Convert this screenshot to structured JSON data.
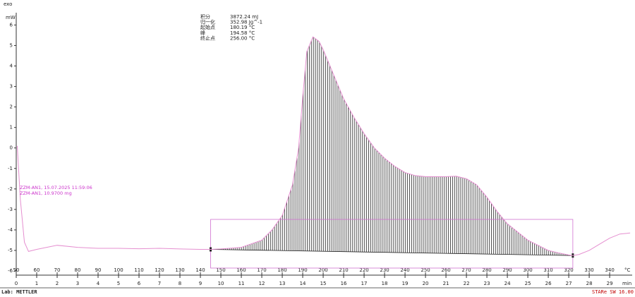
{
  "chart_data": {
    "type": "line",
    "exo_label": "exo",
    "y_label": "mW",
    "x_label": "°C",
    "x2_label": "min",
    "color": "#e58fd0",
    "x": [
      50.5,
      52,
      54,
      56,
      60,
      70,
      80,
      90,
      100,
      110,
      120,
      130,
      140,
      145,
      150,
      160,
      170,
      175,
      180,
      185,
      188,
      190,
      192,
      195,
      198,
      200,
      205,
      210,
      215,
      220,
      225,
      230,
      235,
      240,
      245,
      250,
      255,
      260,
      265,
      270,
      275,
      280,
      285,
      290,
      295,
      300,
      305,
      310,
      315,
      320,
      322,
      325,
      330,
      335,
      340,
      345,
      350
    ],
    "values": [
      0.1,
      -2.5,
      -4.6,
      -5.05,
      -4.95,
      -4.75,
      -4.85,
      -4.9,
      -4.9,
      -4.92,
      -4.9,
      -4.93,
      -4.95,
      -4.95,
      -4.93,
      -4.85,
      -4.5,
      -4.0,
      -3.3,
      -1.8,
      0.0,
      2.5,
      4.7,
      5.42,
      5.2,
      4.8,
      3.6,
      2.4,
      1.5,
      0.7,
      0.0,
      -0.5,
      -0.9,
      -1.2,
      -1.35,
      -1.4,
      -1.4,
      -1.4,
      -1.38,
      -1.5,
      -1.8,
      -2.4,
      -3.1,
      -3.7,
      -4.1,
      -4.5,
      -4.75,
      -5.0,
      -5.12,
      -5.22,
      -5.25,
      -5.2,
      -5.0,
      -4.7,
      -4.4,
      -4.2,
      -4.15
    ],
    "integration": {
      "start": 145,
      "end": 322
    },
    "xlim": [
      50,
      351
    ],
    "xticks": [
      50,
      60,
      70,
      80,
      90,
      100,
      110,
      120,
      130,
      140,
      150,
      160,
      170,
      180,
      190,
      200,
      210,
      220,
      230,
      240,
      250,
      260,
      270,
      280,
      290,
      300,
      310,
      320,
      330,
      340
    ],
    "x2lim": [
      0,
      30.1
    ],
    "x2ticks": [
      0,
      1,
      2,
      3,
      4,
      5,
      6,
      7,
      8,
      9,
      10,
      11,
      12,
      13,
      14,
      15,
      16,
      17,
      18,
      19,
      20,
      21,
      22,
      23,
      24,
      25,
      26,
      27,
      28,
      29
    ],
    "ylim": [
      -6,
      6.6
    ],
    "yticks": [
      -6,
      -5,
      -4,
      -3,
      -2,
      -1,
      0,
      1,
      2,
      3,
      4,
      5,
      6
    ],
    "results": [
      {
        "label": "积分",
        "value": "3872.24 mJ"
      },
      {
        "label": "归一化",
        "value": "352.98 Jg^-1"
      },
      {
        "label": "起始点",
        "value": "180.19 °C"
      },
      {
        "label": "峰",
        "value": "194.58 °C"
      },
      {
        "label": "终止点",
        "value": "256.00 °C"
      }
    ],
    "sample_labels": [
      "ZZM-AN1, 15.07.2025 11:59:06",
      "ZZM-AN1, 10.9700 mg"
    ],
    "footer_left": "Lab: METTLER",
    "footer_right": "STARe SW 16.00"
  }
}
